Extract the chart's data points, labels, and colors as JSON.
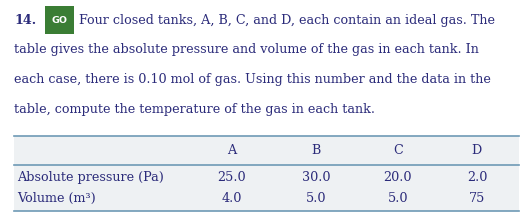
{
  "problem_number": "14.",
  "badge_text": "GO",
  "badge_bg": "#3a7d34",
  "badge_fg": "#ffffff",
  "para_line1": "Four closed tanks, A, B, C, and D, each contain an ideal gas. The",
  "para_line2": "table gives the absolute pressure and volume of the gas in each tank. In",
  "para_line3": "each case, there is 0.10 mol of gas. Using this number and the data in the",
  "para_line4": "table, compute the temperature of the gas in each tank.",
  "text_color": "#2b2b7a",
  "table_bg": "#eef1f3",
  "table_line_color": "#6e9ab5",
  "col_headers": [
    "A",
    "B",
    "C",
    "D"
  ],
  "row_labels": [
    "Absolute pressure (Pa)",
    "Volume (m³)"
  ],
  "row_data": [
    [
      "25.0",
      "30.0",
      "20.0",
      "2.0"
    ],
    [
      "4.0",
      "5.0",
      "5.0",
      "75"
    ]
  ],
  "font_size_body": 9.2,
  "font_size_table": 9.2,
  "fig_width": 5.27,
  "fig_height": 2.14,
  "dpi": 100
}
